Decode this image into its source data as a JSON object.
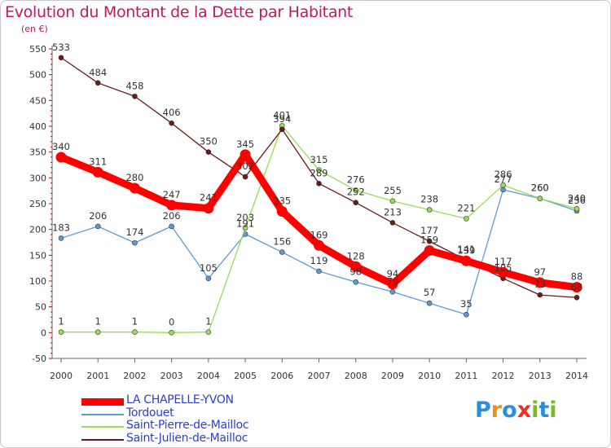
{
  "title": "Evolution du Montant de la Dette par Habitant",
  "subtitle": "(en €)",
  "logo": {
    "text": "Proxiti",
    "colors": [
      "#2a8fd6",
      "#f28c1a",
      "#2a8fd6",
      "#e6332a",
      "#7ab929",
      "#2a8fd6",
      "#7ab929"
    ]
  },
  "chart_data": {
    "type": "line",
    "title": "Evolution du Montant de la Dette par Habitant",
    "subtitle": "(en €)",
    "x": [
      2000,
      2001,
      2002,
      2003,
      2004,
      2005,
      2006,
      2007,
      2008,
      2009,
      2010,
      2011,
      2012,
      2013,
      2014
    ],
    "ylim": [
      -50,
      550
    ],
    "yticks": [
      -50,
      0,
      50,
      100,
      150,
      200,
      250,
      300,
      350,
      400,
      450,
      500,
      550
    ],
    "grid": false,
    "legend": "bottom-left",
    "series": [
      {
        "name": "LA CHAPELLE-YVON",
        "color": "#ff0000",
        "values": [
          340,
          311,
          280,
          247,
          241,
          345,
          235,
          169,
          128,
          94,
          159,
          139,
          117,
          97,
          88
        ]
      },
      {
        "name": "Tordouet",
        "color": "#5b9bd5",
        "values": [
          183,
          206,
          174,
          206,
          105,
          191,
          156,
          119,
          98,
          79,
          57,
          35,
          277,
          260,
          236
        ]
      },
      {
        "name": "Saint-Pierre-de-Mailloc",
        "color": "#99dd55",
        "values": [
          1,
          1,
          1,
          0,
          1,
          203,
          401,
          315,
          276,
          255,
          238,
          221,
          286,
          260,
          240
        ]
      },
      {
        "name": "Saint-Julien-de-Mailloc",
        "color": "#6b1a1a",
        "values": [
          533,
          484,
          458,
          406,
          350,
          302,
          394,
          289,
          252,
          213,
          177,
          141,
          105,
          73,
          68
        ]
      }
    ]
  }
}
